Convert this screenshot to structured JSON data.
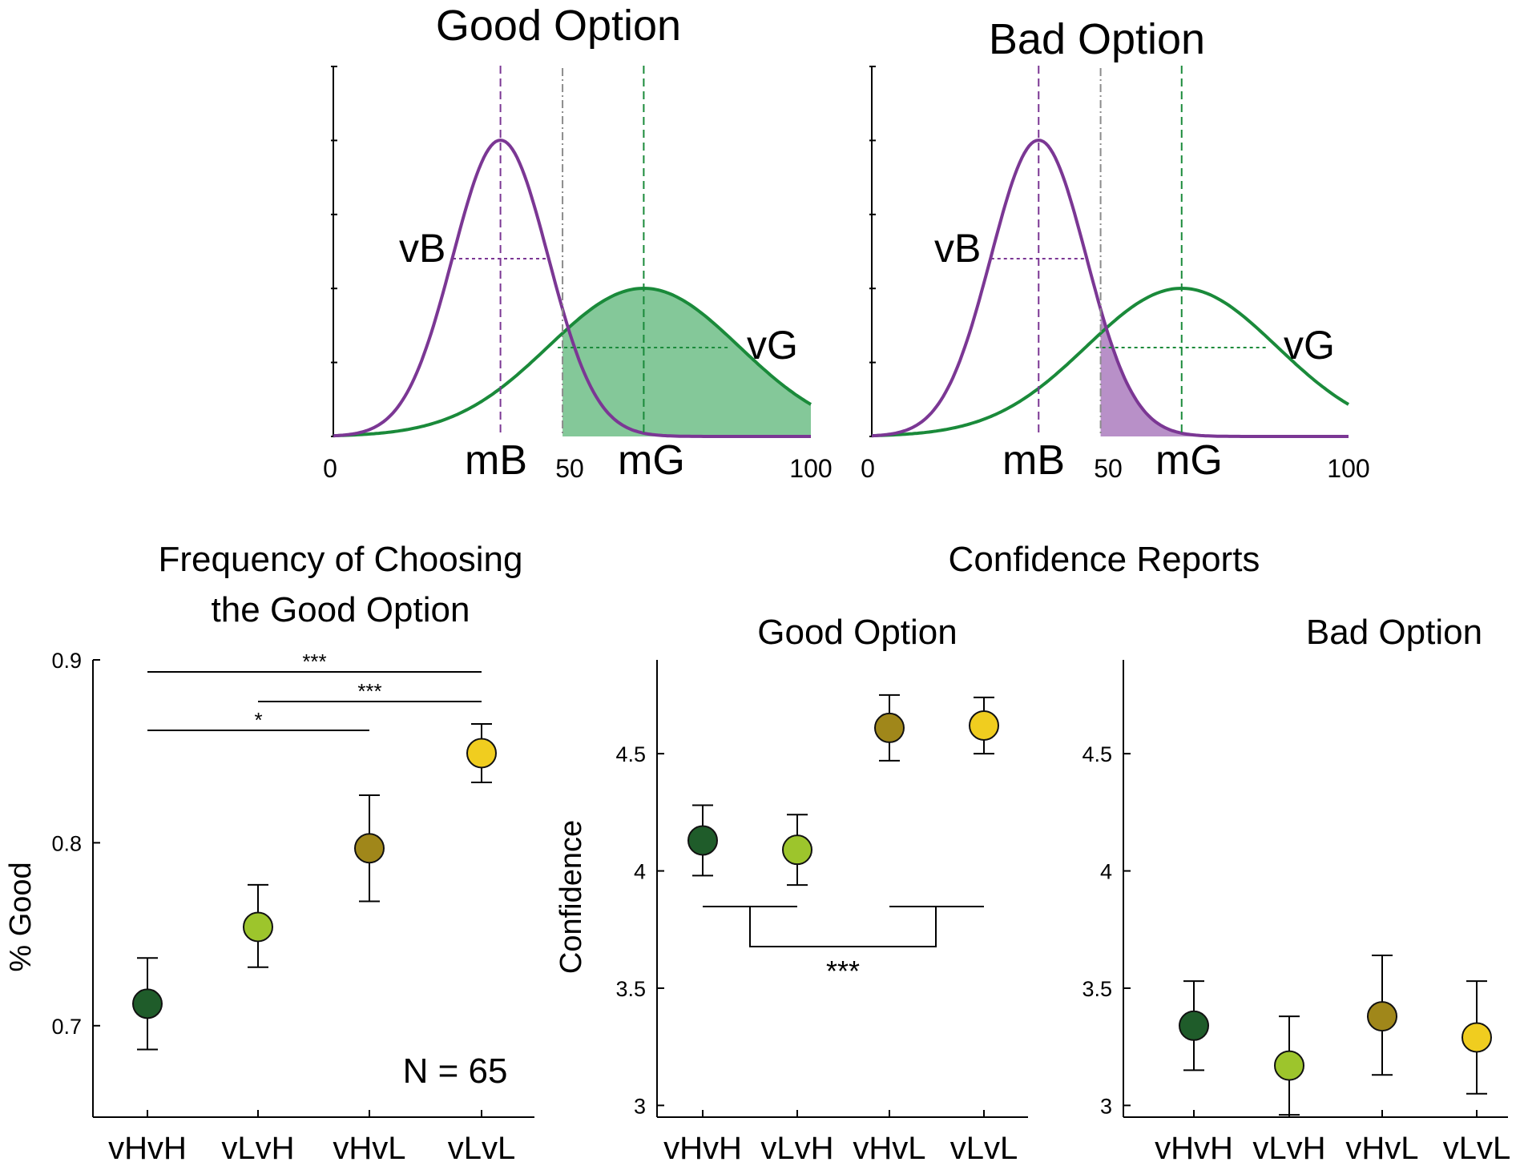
{
  "colors": {
    "purple": "#7B3794",
    "green": "#1A8A3A",
    "green_fill": "#7DC593",
    "purple_fill": "#B48AC5",
    "gray_line": "#8C8C8C",
    "cond": [
      "#1F5C2A",
      "#9DC52C",
      "#A0871A",
      "#F0CD1F"
    ]
  },
  "top": {
    "left_title": "Good Option",
    "right_title": "Bad Option",
    "label_vB": "vB",
    "label_vG": "vG",
    "label_mB": "mB",
    "label_mG": "mG",
    "tick_0": "0",
    "tick_50": "50",
    "tick_100": "100"
  },
  "chart_data": [
    {
      "type": "line",
      "title": "Good Option",
      "xlim": [
        0,
        100
      ],
      "series": [
        {
          "name": "vB",
          "mean": 35,
          "sd": 10,
          "color": "#7B3794"
        },
        {
          "name": "vG",
          "mean": 65,
          "sd": 20,
          "color": "#1A8A3A"
        }
      ],
      "threshold": 48,
      "shaded": "vG above threshold",
      "annotations": [
        "vB",
        "vG",
        "mB",
        "mG"
      ]
    },
    {
      "type": "line",
      "title": "Bad Option",
      "xlim": [
        0,
        100
      ],
      "series": [
        {
          "name": "vB",
          "mean": 35,
          "sd": 10,
          "color": "#7B3794"
        },
        {
          "name": "vG",
          "mean": 65,
          "sd": 20,
          "color": "#1A8A3A"
        }
      ],
      "threshold": 48,
      "shaded": "vB above threshold",
      "annotations": [
        "vB",
        "vG",
        "mB",
        "mG"
      ]
    },
    {
      "type": "scatter",
      "title": "Frequency of Choosing the Good Option",
      "title_lines": [
        "Frequency of Choosing",
        "the Good Option"
      ],
      "ylabel": "% Good",
      "categories": [
        "vHvH",
        "vLvH",
        "vHvL",
        "vLvL"
      ],
      "values": [
        0.712,
        0.754,
        0.797,
        0.849
      ],
      "err_low": [
        0.687,
        0.732,
        0.768,
        0.833
      ],
      "err_high": [
        0.737,
        0.777,
        0.826,
        0.865
      ],
      "ylim": [
        0.65,
        0.9
      ],
      "yticks": [
        "0.7",
        "0.8",
        "0.9"
      ],
      "ytick_values": [
        0.7,
        0.8,
        0.9
      ],
      "brackets": [
        {
          "from": 0,
          "to": 3,
          "label": "***"
        },
        {
          "from": 1,
          "to": 3,
          "label": "***"
        },
        {
          "from": 0,
          "to": 2,
          "label": "*"
        }
      ],
      "annotation": "N = 65"
    },
    {
      "type": "scatter",
      "title": "Good Option",
      "super_title": "Confidence Reports",
      "ylabel": "Confidence",
      "categories": [
        "vHvH",
        "vLvH",
        "vHvL",
        "vLvL"
      ],
      "values": [
        4.13,
        4.09,
        4.61,
        4.62
      ],
      "err_low": [
        3.98,
        3.94,
        4.47,
        4.5
      ],
      "err_high": [
        4.28,
        4.24,
        4.75,
        4.74
      ],
      "ylim": [
        2.95,
        4.9
      ],
      "yticks": [
        "3",
        "3.5",
        "4",
        "4.5"
      ],
      "ytick_values": [
        3,
        3.5,
        4,
        4.5
      ],
      "group_bracket_label": "***"
    },
    {
      "type": "scatter",
      "title": "Bad Option",
      "categories": [
        "vHvH",
        "vLvH",
        "vHvL",
        "vLvL"
      ],
      "values": [
        3.34,
        3.17,
        3.38,
        3.29
      ],
      "err_low": [
        3.15,
        2.96,
        3.13,
        3.05
      ],
      "err_high": [
        3.53,
        3.38,
        3.64,
        3.53
      ],
      "ylim": [
        2.95,
        4.9
      ],
      "yticks": [
        "3",
        "3.5",
        "4",
        "4.5"
      ],
      "ytick_values": [
        3,
        3.5,
        4,
        4.5
      ]
    }
  ]
}
